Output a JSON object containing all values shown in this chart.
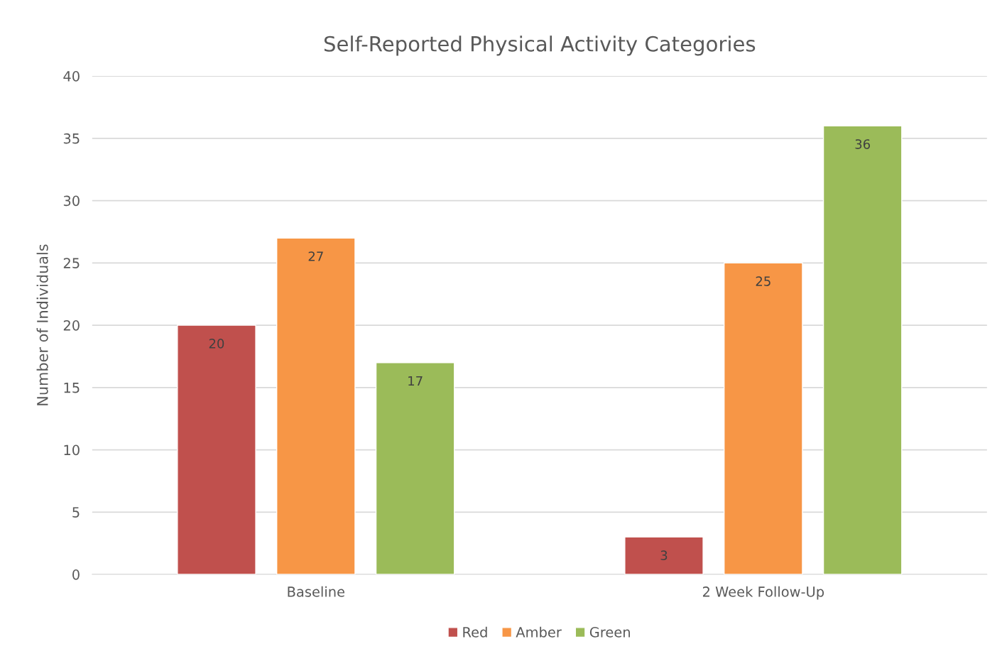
{
  "chart_data": {
    "type": "bar",
    "title": "Self-Reported Physical Activity Categories",
    "ylabel": "Number of Individuals",
    "categories": [
      "Baseline",
      "2 Week Follow-Up"
    ],
    "series": [
      {
        "name": "Red",
        "color": "#c0504d",
        "values": [
          20,
          3
        ]
      },
      {
        "name": "Amber",
        "color": "#f79646",
        "values": [
          27,
          25
        ]
      },
      {
        "name": "Green",
        "color": "#9bbb59",
        "values": [
          17,
          36
        ]
      }
    ],
    "ylim": [
      0,
      40
    ],
    "yticks": [
      0,
      5,
      10,
      15,
      20,
      25,
      30,
      35,
      40
    ],
    "grid": "y",
    "legend": "bottom",
    "data_labels": true
  }
}
